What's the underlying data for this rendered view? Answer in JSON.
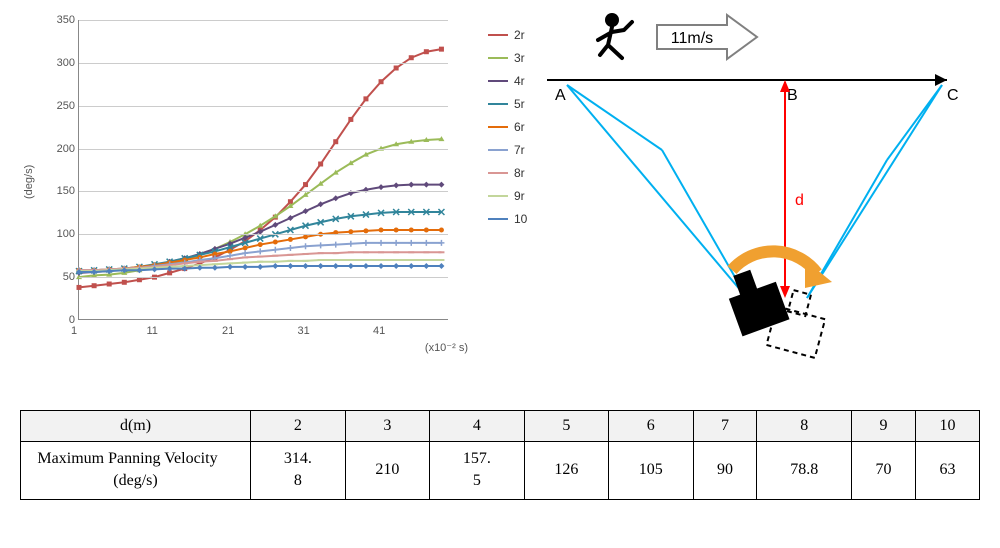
{
  "chart": {
    "type": "line",
    "ylabel": "(deg/s)",
    "xunit": "(x10⁻² s)",
    "ylim": [
      0,
      350
    ],
    "ytick_step": 50,
    "xlim": [
      1,
      50
    ],
    "xticks": [
      1,
      11,
      21,
      31,
      41
    ],
    "grid_color": "#cccccc",
    "axis_color": "#888888",
    "series": [
      {
        "name": "2r",
        "color": "#c0504d",
        "marker": "square",
        "points": [
          [
            1,
            38
          ],
          [
            3,
            40
          ],
          [
            5,
            42
          ],
          [
            7,
            44
          ],
          [
            9,
            47
          ],
          [
            11,
            50
          ],
          [
            13,
            55
          ],
          [
            15,
            60
          ],
          [
            17,
            66
          ],
          [
            19,
            73
          ],
          [
            21,
            82
          ],
          [
            23,
            92
          ],
          [
            25,
            105
          ],
          [
            27,
            120
          ],
          [
            29,
            138
          ],
          [
            31,
            158
          ],
          [
            33,
            182
          ],
          [
            35,
            208
          ],
          [
            37,
            234
          ],
          [
            39,
            258
          ],
          [
            41,
            278
          ],
          [
            43,
            294
          ],
          [
            45,
            306
          ],
          [
            47,
            313
          ],
          [
            49,
            316
          ]
        ]
      },
      {
        "name": "3r",
        "color": "#9bbb59",
        "marker": "triangle",
        "points": [
          [
            1,
            50
          ],
          [
            3,
            52
          ],
          [
            5,
            53
          ],
          [
            7,
            55
          ],
          [
            9,
            58
          ],
          [
            11,
            61
          ],
          [
            13,
            65
          ],
          [
            15,
            70
          ],
          [
            17,
            76
          ],
          [
            19,
            83
          ],
          [
            21,
            91
          ],
          [
            23,
            100
          ],
          [
            25,
            110
          ],
          [
            27,
            121
          ],
          [
            29,
            133
          ],
          [
            31,
            146
          ],
          [
            33,
            159
          ],
          [
            35,
            172
          ],
          [
            37,
            183
          ],
          [
            39,
            193
          ],
          [
            41,
            200
          ],
          [
            43,
            205
          ],
          [
            45,
            208
          ],
          [
            47,
            210
          ],
          [
            49,
            211
          ]
        ]
      },
      {
        "name": "4r",
        "color": "#604a7b",
        "marker": "diamond",
        "points": [
          [
            1,
            55
          ],
          [
            3,
            56
          ],
          [
            5,
            57
          ],
          [
            7,
            59
          ],
          [
            9,
            61
          ],
          [
            11,
            64
          ],
          [
            13,
            68
          ],
          [
            15,
            72
          ],
          [
            17,
            77
          ],
          [
            19,
            83
          ],
          [
            21,
            89
          ],
          [
            23,
            96
          ],
          [
            25,
            103
          ],
          [
            27,
            111
          ],
          [
            29,
            119
          ],
          [
            31,
            127
          ],
          [
            33,
            135
          ],
          [
            35,
            142
          ],
          [
            37,
            148
          ],
          [
            39,
            152
          ],
          [
            41,
            155
          ],
          [
            43,
            157
          ],
          [
            45,
            158
          ],
          [
            47,
            158
          ],
          [
            49,
            158
          ]
        ]
      },
      {
        "name": "5r",
        "color": "#31859b",
        "marker": "x",
        "points": [
          [
            1,
            57
          ],
          [
            3,
            58
          ],
          [
            5,
            59
          ],
          [
            7,
            60
          ],
          [
            9,
            62
          ],
          [
            11,
            65
          ],
          [
            13,
            68
          ],
          [
            15,
            72
          ],
          [
            17,
            76
          ],
          [
            19,
            80
          ],
          [
            21,
            85
          ],
          [
            23,
            90
          ],
          [
            25,
            95
          ],
          [
            27,
            100
          ],
          [
            29,
            105
          ],
          [
            31,
            110
          ],
          [
            33,
            114
          ],
          [
            35,
            118
          ],
          [
            37,
            121
          ],
          [
            39,
            123
          ],
          [
            41,
            125
          ],
          [
            43,
            126
          ],
          [
            45,
            126
          ],
          [
            47,
            126
          ],
          [
            49,
            126
          ]
        ]
      },
      {
        "name": "6r",
        "color": "#e46c0a",
        "marker": "circle",
        "points": [
          [
            1,
            58
          ],
          [
            3,
            58
          ],
          [
            5,
            59
          ],
          [
            7,
            60
          ],
          [
            9,
            62
          ],
          [
            11,
            64
          ],
          [
            13,
            67
          ],
          [
            15,
            70
          ],
          [
            17,
            73
          ],
          [
            19,
            77
          ],
          [
            21,
            80
          ],
          [
            23,
            84
          ],
          [
            25,
            88
          ],
          [
            27,
            91
          ],
          [
            29,
            94
          ],
          [
            31,
            97
          ],
          [
            33,
            100
          ],
          [
            35,
            102
          ],
          [
            37,
            103
          ],
          [
            39,
            104
          ],
          [
            41,
            105
          ],
          [
            43,
            105
          ],
          [
            45,
            105
          ],
          [
            47,
            105
          ],
          [
            49,
            105
          ]
        ]
      },
      {
        "name": "7r",
        "color": "#8aa2d0",
        "marker": "plus",
        "points": [
          [
            1,
            58
          ],
          [
            3,
            58
          ],
          [
            5,
            59
          ],
          [
            7,
            60
          ],
          [
            9,
            61
          ],
          [
            11,
            63
          ],
          [
            13,
            65
          ],
          [
            15,
            67
          ],
          [
            17,
            70
          ],
          [
            19,
            72
          ],
          [
            21,
            75
          ],
          [
            23,
            78
          ],
          [
            25,
            80
          ],
          [
            27,
            82
          ],
          [
            29,
            84
          ],
          [
            31,
            86
          ],
          [
            33,
            87
          ],
          [
            35,
            88
          ],
          [
            37,
            89
          ],
          [
            39,
            90
          ],
          [
            41,
            90
          ],
          [
            43,
            90
          ],
          [
            45,
            90
          ],
          [
            47,
            90
          ],
          [
            49,
            90
          ]
        ]
      },
      {
        "name": "8r",
        "color": "#d99694",
        "marker": "dash",
        "points": [
          [
            1,
            58
          ],
          [
            3,
            58
          ],
          [
            5,
            59
          ],
          [
            7,
            60
          ],
          [
            9,
            61
          ],
          [
            11,
            62
          ],
          [
            13,
            64
          ],
          [
            15,
            66
          ],
          [
            17,
            68
          ],
          [
            19,
            69
          ],
          [
            21,
            71
          ],
          [
            23,
            73
          ],
          [
            25,
            74
          ],
          [
            27,
            75
          ],
          [
            29,
            76
          ],
          [
            31,
            77
          ],
          [
            33,
            78
          ],
          [
            35,
            78
          ],
          [
            37,
            79
          ],
          [
            39,
            79
          ],
          [
            41,
            79
          ],
          [
            43,
            79
          ],
          [
            45,
            79
          ],
          [
            47,
            79
          ],
          [
            49,
            79
          ]
        ]
      },
      {
        "name": "9r",
        "color": "#c3d69b",
        "marker": "dash",
        "points": [
          [
            1,
            57
          ],
          [
            3,
            57
          ],
          [
            5,
            58
          ],
          [
            7,
            59
          ],
          [
            9,
            60
          ],
          [
            11,
            61
          ],
          [
            13,
            62
          ],
          [
            15,
            63
          ],
          [
            17,
            64
          ],
          [
            19,
            65
          ],
          [
            21,
            66
          ],
          [
            23,
            67
          ],
          [
            25,
            68
          ],
          [
            27,
            68
          ],
          [
            29,
            69
          ],
          [
            31,
            69
          ],
          [
            33,
            70
          ],
          [
            35,
            70
          ],
          [
            37,
            70
          ],
          [
            39,
            70
          ],
          [
            41,
            70
          ],
          [
            43,
            70
          ],
          [
            45,
            70
          ],
          [
            47,
            70
          ],
          [
            49,
            70
          ]
        ]
      },
      {
        "name": "10",
        "color": "#4f81bd",
        "marker": "diamond",
        "points": [
          [
            1,
            56
          ],
          [
            3,
            56
          ],
          [
            5,
            57
          ],
          [
            7,
            58
          ],
          [
            9,
            58
          ],
          [
            11,
            59
          ],
          [
            13,
            60
          ],
          [
            15,
            60
          ],
          [
            17,
            61
          ],
          [
            19,
            61
          ],
          [
            21,
            62
          ],
          [
            23,
            62
          ],
          [
            25,
            62
          ],
          [
            27,
            63
          ],
          [
            29,
            63
          ],
          [
            31,
            63
          ],
          [
            33,
            63
          ],
          [
            35,
            63
          ],
          [
            37,
            63
          ],
          [
            39,
            63
          ],
          [
            41,
            63
          ],
          [
            43,
            63
          ],
          [
            45,
            63
          ],
          [
            47,
            63
          ],
          [
            49,
            63
          ]
        ]
      }
    ]
  },
  "diagram": {
    "speed_label": "11m/s",
    "pt_a": "A",
    "pt_b": "B",
    "pt_c": "C",
    "dist_label": "d",
    "line_color": "#000000",
    "cone_color": "#00b0f0",
    "arrow_outline": "#808080",
    "dist_arrow_color": "#ff0000",
    "pan_arrow_color": "#f0a030"
  },
  "table": {
    "header_bg": "#f2f2f2",
    "row1_label": "d(m)",
    "row1_values": [
      "2",
      "3",
      "4",
      "5",
      "6",
      "7",
      "8",
      "9",
      "10"
    ],
    "row2_label": "Maximum Panning Velocity (deg/s)",
    "row2_values": [
      "314.8",
      "210",
      "157.5",
      "126",
      "105",
      "90",
      "78.8",
      "70",
      "63"
    ]
  }
}
